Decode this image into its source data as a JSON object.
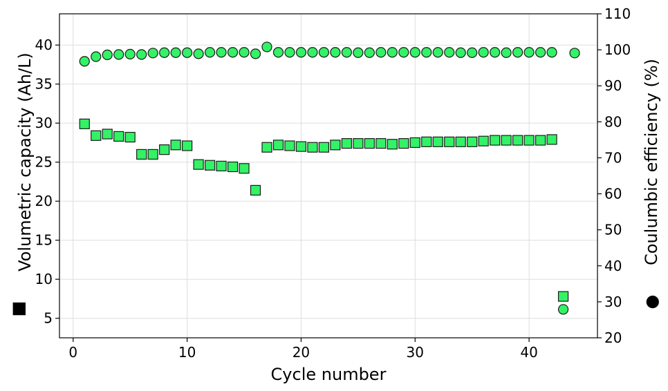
{
  "chart_data": {
    "type": "scatter",
    "title": "",
    "xlabel": "Cycle number",
    "ylabel": "Volumetric capacity (Ah/L)",
    "ylabel_marker": "■",
    "y2label": "Coulumbic efficiency (%)",
    "y2label_marker": "●",
    "xlim": [
      -1.2,
      46
    ],
    "ylim": [
      2.5,
      44
    ],
    "y2lim": [
      20,
      110
    ],
    "xticks": [
      0,
      10,
      20,
      30,
      40
    ],
    "yticks": [
      5,
      10,
      15,
      20,
      25,
      30,
      35,
      40
    ],
    "y2ticks": [
      20,
      30,
      40,
      50,
      60,
      70,
      80,
      90,
      100,
      110
    ],
    "grid": true,
    "marker_color": "#33f266",
    "series": [
      {
        "axis": "left",
        "marker": "square",
        "points": [
          [
            1,
            29.9
          ],
          [
            2,
            28.4
          ],
          [
            3,
            28.6
          ],
          [
            4,
            28.3
          ],
          [
            5,
            28.2
          ],
          [
            6,
            26.0
          ],
          [
            7,
            26.0
          ],
          [
            8,
            26.6
          ],
          [
            9,
            27.2
          ],
          [
            10,
            27.1
          ],
          [
            11,
            24.7
          ],
          [
            12,
            24.6
          ],
          [
            13,
            24.5
          ],
          [
            14,
            24.4
          ],
          [
            15,
            24.2
          ],
          [
            16,
            21.4
          ],
          [
            17,
            26.9
          ],
          [
            18,
            27.2
          ],
          [
            19,
            27.1
          ],
          [
            20,
            27.0
          ],
          [
            21,
            26.9
          ],
          [
            22,
            26.9
          ],
          [
            23,
            27.2
          ],
          [
            24,
            27.4
          ],
          [
            25,
            27.4
          ],
          [
            26,
            27.4
          ],
          [
            27,
            27.4
          ],
          [
            28,
            27.3
          ],
          [
            29,
            27.4
          ],
          [
            30,
            27.5
          ],
          [
            31,
            27.6
          ],
          [
            32,
            27.6
          ],
          [
            33,
            27.6
          ],
          [
            34,
            27.6
          ],
          [
            35,
            27.6
          ],
          [
            36,
            27.7
          ],
          [
            37,
            27.8
          ],
          [
            38,
            27.8
          ],
          [
            39,
            27.8
          ],
          [
            40,
            27.8
          ],
          [
            41,
            27.8
          ],
          [
            42,
            27.9
          ],
          [
            43,
            7.8
          ]
        ]
      },
      {
        "axis": "right",
        "marker": "circle",
        "points": [
          [
            1,
            96.8
          ],
          [
            2,
            98.1
          ],
          [
            3,
            98.6
          ],
          [
            4,
            98.7
          ],
          [
            5,
            98.8
          ],
          [
            6,
            98.7
          ],
          [
            7,
            99.1
          ],
          [
            8,
            99.2
          ],
          [
            9,
            99.2
          ],
          [
            10,
            99.2
          ],
          [
            11,
            98.9
          ],
          [
            12,
            99.3
          ],
          [
            13,
            99.3
          ],
          [
            14,
            99.3
          ],
          [
            15,
            99.3
          ],
          [
            16,
            98.9
          ],
          [
            17,
            100.8
          ],
          [
            18,
            99.3
          ],
          [
            19,
            99.3
          ],
          [
            20,
            99.3
          ],
          [
            21,
            99.3
          ],
          [
            22,
            99.3
          ],
          [
            23,
            99.3
          ],
          [
            24,
            99.3
          ],
          [
            25,
            99.2
          ],
          [
            26,
            99.2
          ],
          [
            27,
            99.3
          ],
          [
            28,
            99.3
          ],
          [
            29,
            99.3
          ],
          [
            30,
            99.3
          ],
          [
            31,
            99.3
          ],
          [
            32,
            99.3
          ],
          [
            33,
            99.3
          ],
          [
            34,
            99.2
          ],
          [
            35,
            99.2
          ],
          [
            36,
            99.3
          ],
          [
            37,
            99.3
          ],
          [
            38,
            99.2
          ],
          [
            39,
            99.3
          ],
          [
            40,
            99.3
          ],
          [
            41,
            99.3
          ],
          [
            42,
            99.3
          ],
          [
            43,
            27.9
          ],
          [
            44,
            99.1
          ]
        ]
      }
    ]
  }
}
